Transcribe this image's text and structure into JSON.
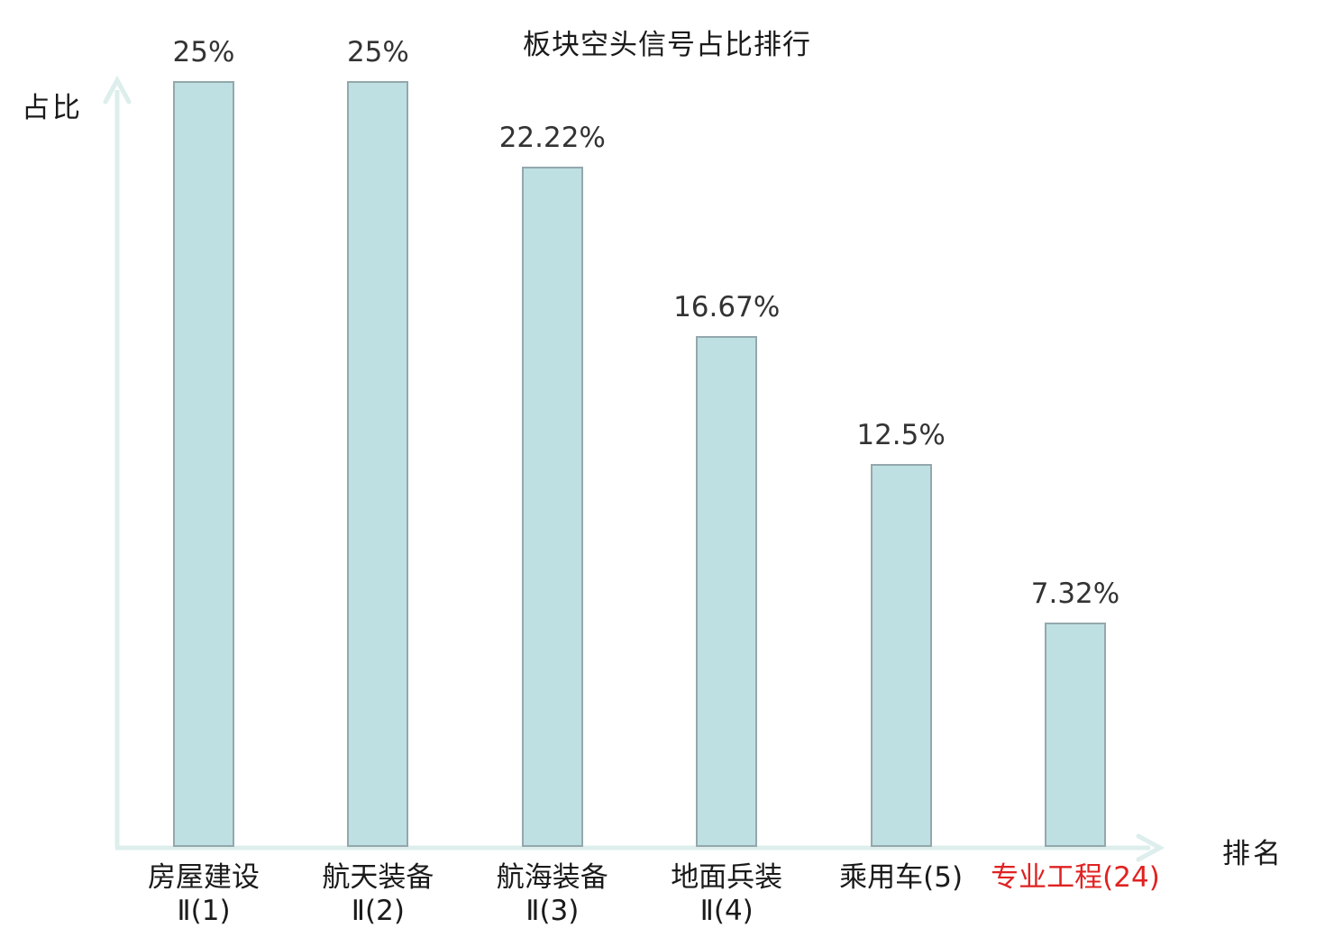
{
  "title": "板块空头信号占比排行",
  "axis": {
    "y_label": "占比",
    "x_label": "排名",
    "line_color": "#ddeeec"
  },
  "chart_data": {
    "type": "bar",
    "title": "板块空头信号占比排行",
    "xlabel": "排名",
    "ylabel": "占比",
    "ylim": [
      0,
      25
    ],
    "grid": false,
    "legend": false,
    "bar_fill_color": "#bfe0e3",
    "bar_border_color": "#93a8ac",
    "highlight_text_color": "#e02222",
    "categories": [
      "房屋建设Ⅱ(1)",
      "航天装备Ⅱ(2)",
      "航海装备Ⅱ(3)",
      "地面兵装Ⅱ(4)",
      "乘用车(5)",
      "专业工程(24)"
    ],
    "values": [
      25,
      25,
      22.22,
      16.67,
      12.5,
      7.32
    ],
    "items": [
      {
        "label_lines": [
          "房屋建设",
          "Ⅱ(1)"
        ],
        "value": 25,
        "value_label": "25%",
        "highlight": false
      },
      {
        "label_lines": [
          "航天装备",
          "Ⅱ(2)"
        ],
        "value": 25,
        "value_label": "25%",
        "highlight": false
      },
      {
        "label_lines": [
          "航海装备",
          "Ⅱ(3)"
        ],
        "value": 22.22,
        "value_label": "22.22%",
        "highlight": false
      },
      {
        "label_lines": [
          "地面兵装",
          "Ⅱ(4)"
        ],
        "value": 16.67,
        "value_label": "16.67%",
        "highlight": false
      },
      {
        "label_lines": [
          "乘用车(5)"
        ],
        "value": 12.5,
        "value_label": "12.5%",
        "highlight": false
      },
      {
        "label_lines": [
          "专业工程(24)"
        ],
        "value": 7.32,
        "value_label": "7.32%",
        "highlight": true
      }
    ]
  }
}
